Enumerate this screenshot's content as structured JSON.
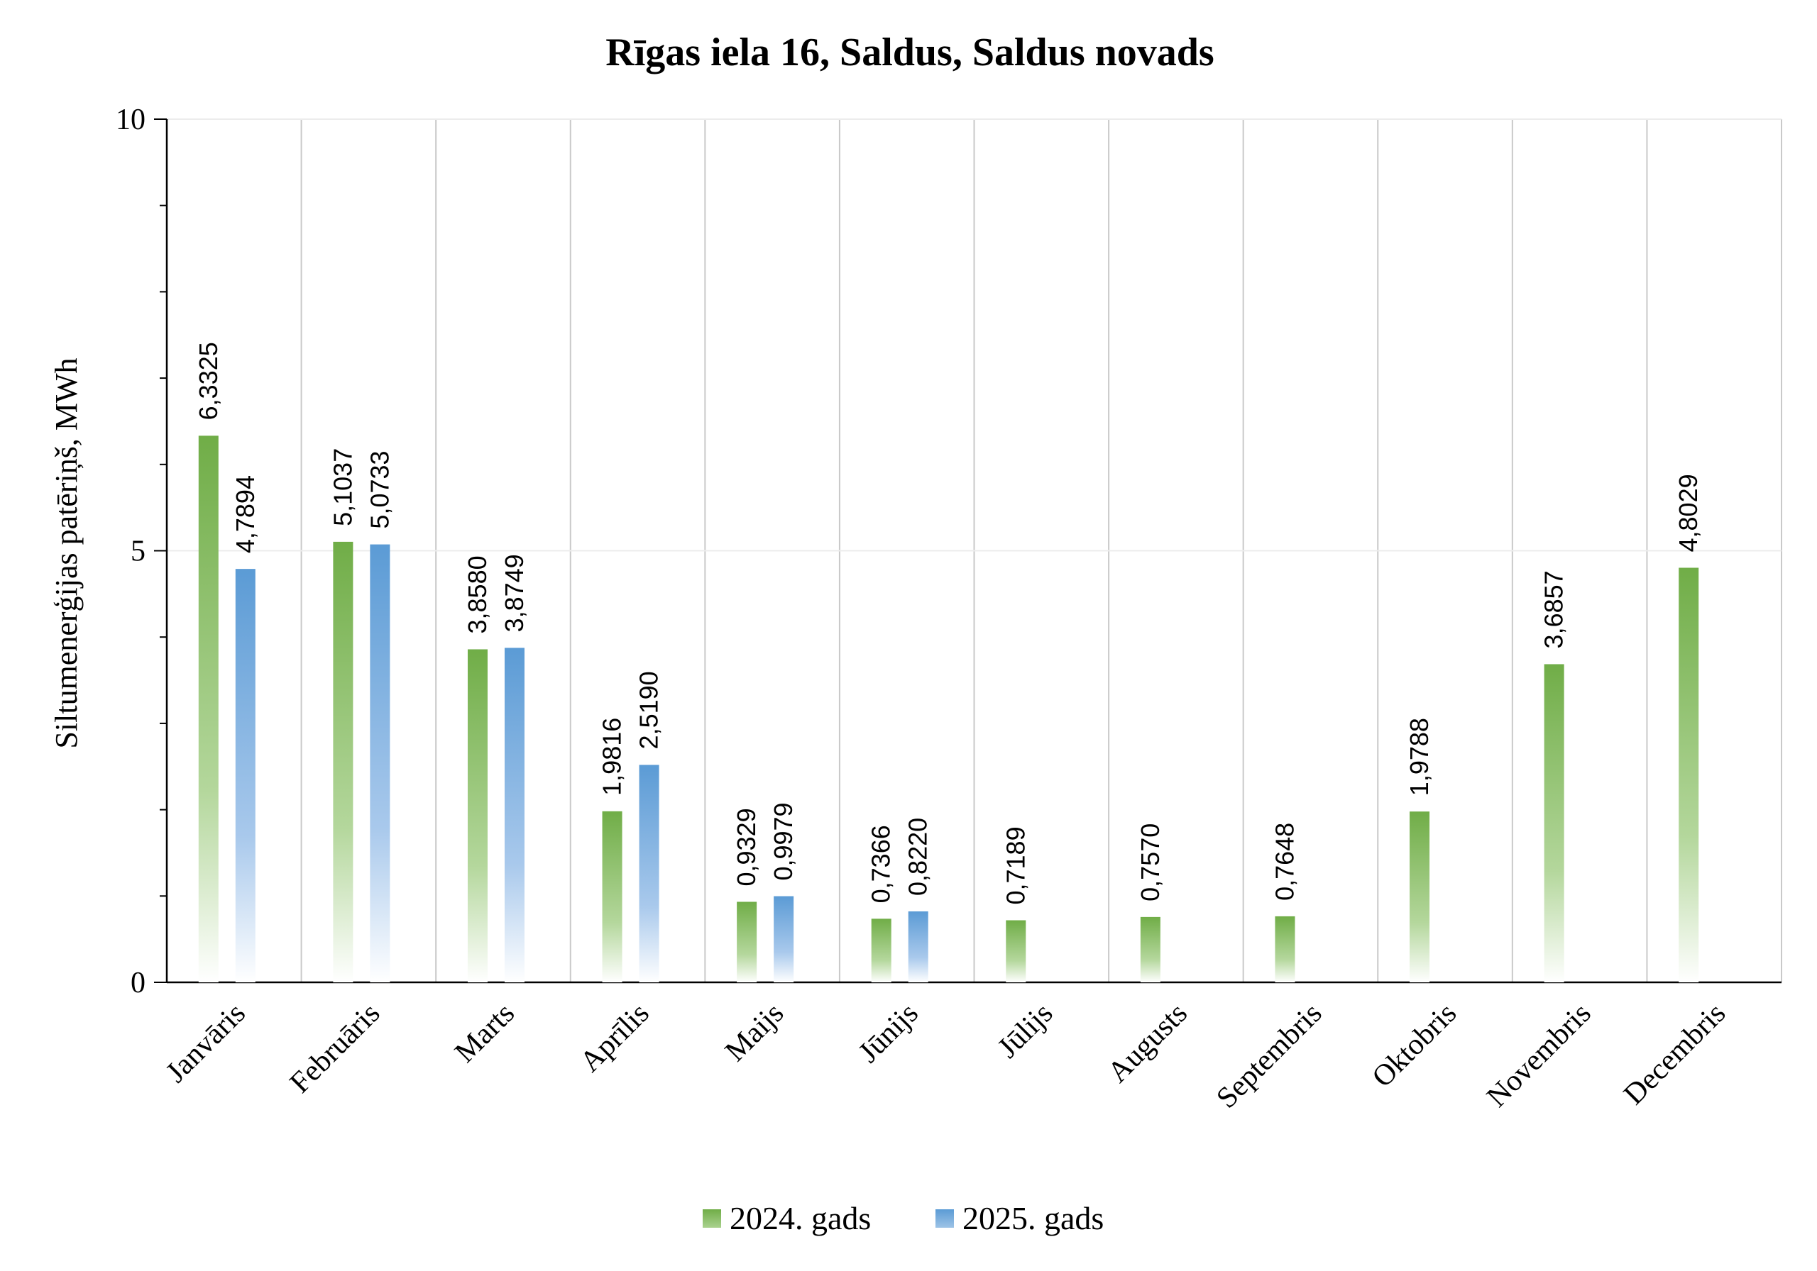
{
  "chart_data": {
    "type": "bar",
    "title": "Rīgas iela 16, Saldus, Saldus novads",
    "xlabel": "",
    "ylabel": "Siltumenerģijas patēriņš, MWh",
    "ylim": [
      0,
      10
    ],
    "yticks": [
      "0",
      "5",
      "10"
    ],
    "grid": "vertical category separators",
    "legend": "bottom",
    "categories": [
      "Janvāris",
      "Februāris",
      "Marts",
      "Aprīlis",
      "Maijs",
      "Jūnijs",
      "Jūlijs",
      "Augusts",
      "Septembris",
      "Oktobris",
      "Novembris",
      "Decembris"
    ],
    "series": [
      {
        "name": "2024. gads",
        "color": "#70AD47",
        "values": [
          6.3325,
          5.1037,
          3.858,
          1.9816,
          0.9329,
          0.7366,
          0.7189,
          0.757,
          0.7648,
          1.9788,
          3.6857,
          4.8029
        ],
        "labels": [
          "6,3325",
          "5,1037",
          "3,8580",
          "1,9816",
          "0,9329",
          "0,7366",
          "0,7189",
          "0,7570",
          "0,7648",
          "1,9788",
          "3,6857",
          "4,8029"
        ]
      },
      {
        "name": "2025. gads",
        "color": "#5B9BD5",
        "values": [
          4.7894,
          5.0733,
          3.8749,
          2.519,
          0.9979,
          0.822,
          null,
          null,
          null,
          null,
          null,
          null
        ],
        "labels": [
          "4,7894",
          "5,0733",
          "3,8749",
          "2,5190",
          "0,9979",
          "0,8220",
          "",
          "",
          "",
          "",
          "",
          ""
        ]
      }
    ]
  }
}
